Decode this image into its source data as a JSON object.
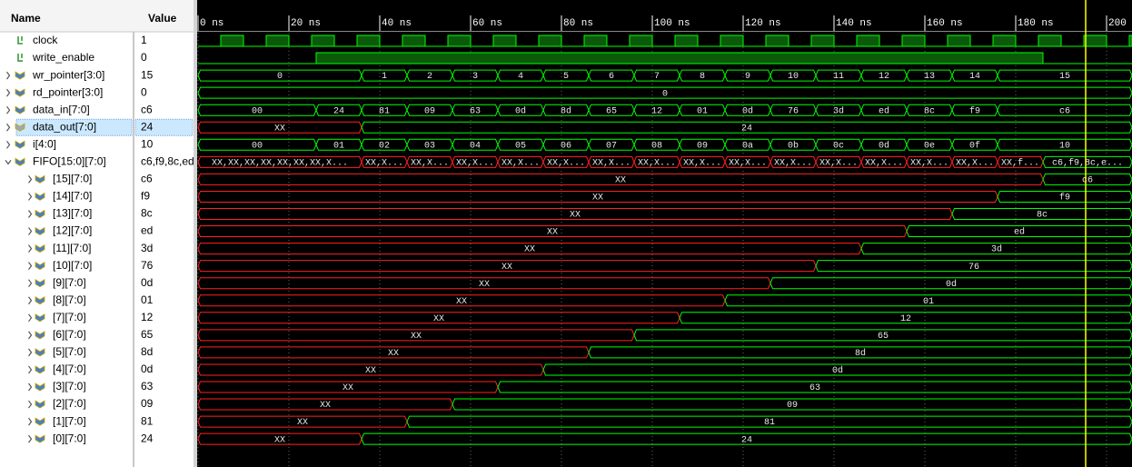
{
  "header": {
    "name": "Name",
    "value": "Value"
  },
  "timeline": {
    "xlim": [
      0,
      205.6
    ],
    "xticks": [
      {
        "value": 0,
        "label": "0 ns"
      },
      {
        "value": 20,
        "label": "20 ns"
      },
      {
        "value": 40,
        "label": "40 ns"
      },
      {
        "value": 60,
        "label": "60 ns"
      },
      {
        "value": 80,
        "label": "80 ns"
      },
      {
        "value": 100,
        "label": "100 ns"
      },
      {
        "value": 120,
        "label": "120 ns"
      },
      {
        "value": 140,
        "label": "140 ns"
      },
      {
        "value": 160,
        "label": "160 ns"
      },
      {
        "value": 180,
        "label": "180 ns"
      },
      {
        "value": 200,
        "label": "200 ns"
      }
    ],
    "cursor": 195.4
  },
  "signals": [
    {
      "name": "clock",
      "value": "1",
      "kind": "bit",
      "level": 0,
      "segments": [
        {
          "t": 0,
          "v": 0
        },
        {
          "t": 5,
          "v": 1
        },
        {
          "t": 10,
          "v": 0
        },
        {
          "t": 15,
          "v": 1
        },
        {
          "t": 20,
          "v": 0
        },
        {
          "t": 25,
          "v": 1
        },
        {
          "t": 30,
          "v": 0
        },
        {
          "t": 35,
          "v": 1
        },
        {
          "t": 40,
          "v": 0
        },
        {
          "t": 45,
          "v": 1
        },
        {
          "t": 50,
          "v": 0
        },
        {
          "t": 55,
          "v": 1
        },
        {
          "t": 60,
          "v": 0
        },
        {
          "t": 65,
          "v": 1
        },
        {
          "t": 70,
          "v": 0
        },
        {
          "t": 75,
          "v": 1
        },
        {
          "t": 80,
          "v": 0
        },
        {
          "t": 85,
          "v": 1
        },
        {
          "t": 90,
          "v": 0
        },
        {
          "t": 95,
          "v": 1
        },
        {
          "t": 100,
          "v": 0
        },
        {
          "t": 105,
          "v": 1
        },
        {
          "t": 110,
          "v": 0
        },
        {
          "t": 115,
          "v": 1
        },
        {
          "t": 120,
          "v": 0
        },
        {
          "t": 125,
          "v": 1
        },
        {
          "t": 130,
          "v": 0
        },
        {
          "t": 135,
          "v": 1
        },
        {
          "t": 140,
          "v": 0
        },
        {
          "t": 145,
          "v": 1
        },
        {
          "t": 150,
          "v": 0
        },
        {
          "t": 155,
          "v": 1
        },
        {
          "t": 160,
          "v": 0
        },
        {
          "t": 165,
          "v": 1
        },
        {
          "t": 170,
          "v": 0
        },
        {
          "t": 175,
          "v": 1
        },
        {
          "t": 180,
          "v": 0
        },
        {
          "t": 185,
          "v": 1
        },
        {
          "t": 190,
          "v": 0
        },
        {
          "t": 195,
          "v": 1
        },
        {
          "t": 200,
          "v": 0
        },
        {
          "t": 205,
          "v": 1
        }
      ]
    },
    {
      "name": "write_enable",
      "value": "0",
      "kind": "bit",
      "level": 0,
      "segments": [
        {
          "t": 0,
          "v": 0
        },
        {
          "t": 26,
          "v": 1
        },
        {
          "t": 186,
          "v": 0
        }
      ]
    },
    {
      "name": "wr_pointer[3:0]",
      "value": "15",
      "kind": "bus",
      "level": 0,
      "segments": [
        {
          "t": 0,
          "label": "0"
        },
        {
          "t": 36,
          "label": "1"
        },
        {
          "t": 46,
          "label": "2"
        },
        {
          "t": 56,
          "label": "3"
        },
        {
          "t": 66,
          "label": "4"
        },
        {
          "t": 76,
          "label": "5"
        },
        {
          "t": 86,
          "label": "6"
        },
        {
          "t": 96,
          "label": "7"
        },
        {
          "t": 106,
          "label": "8"
        },
        {
          "t": 116,
          "label": "9"
        },
        {
          "t": 126,
          "label": "10"
        },
        {
          "t": 136,
          "label": "11"
        },
        {
          "t": 146,
          "label": "12"
        },
        {
          "t": 156,
          "label": "13"
        },
        {
          "t": 166,
          "label": "14"
        },
        {
          "t": 176,
          "label": "15"
        }
      ]
    },
    {
      "name": "rd_pointer[3:0]",
      "value": "0",
      "kind": "bus",
      "level": 0,
      "segments": [
        {
          "t": 0,
          "label": "0"
        }
      ]
    },
    {
      "name": "data_in[7:0]",
      "value": "c6",
      "kind": "bus",
      "level": 0,
      "segments": [
        {
          "t": 0,
          "label": "00"
        },
        {
          "t": 26,
          "label": "24"
        },
        {
          "t": 36,
          "label": "81"
        },
        {
          "t": 46,
          "label": "09"
        },
        {
          "t": 56,
          "label": "63"
        },
        {
          "t": 66,
          "label": "0d"
        },
        {
          "t": 76,
          "label": "8d"
        },
        {
          "t": 86,
          "label": "65"
        },
        {
          "t": 96,
          "label": "12"
        },
        {
          "t": 106,
          "label": "01"
        },
        {
          "t": 116,
          "label": "0d"
        },
        {
          "t": 126,
          "label": "76"
        },
        {
          "t": 136,
          "label": "3d"
        },
        {
          "t": 146,
          "label": "ed"
        },
        {
          "t": 156,
          "label": "8c"
        },
        {
          "t": 166,
          "label": "f9"
        },
        {
          "t": 176,
          "label": "c6"
        }
      ]
    },
    {
      "name": "data_out[7:0]",
      "value": "24",
      "kind": "bus",
      "level": 0,
      "selected": true,
      "segments": [
        {
          "t": 0,
          "label": "XX"
        },
        {
          "t": 36,
          "label": "24"
        }
      ]
    },
    {
      "name": "i[4:0]",
      "value": "10",
      "kind": "bus",
      "level": 0,
      "segments": [
        {
          "t": 0,
          "label": "00"
        },
        {
          "t": 26,
          "label": "01"
        },
        {
          "t": 36,
          "label": "02"
        },
        {
          "t": 46,
          "label": "03"
        },
        {
          "t": 56,
          "label": "04"
        },
        {
          "t": 66,
          "label": "05"
        },
        {
          "t": 76,
          "label": "06"
        },
        {
          "t": 86,
          "label": "07"
        },
        {
          "t": 96,
          "label": "08"
        },
        {
          "t": 106,
          "label": "09"
        },
        {
          "t": 116,
          "label": "0a"
        },
        {
          "t": 126,
          "label": "0b"
        },
        {
          "t": 136,
          "label": "0c"
        },
        {
          "t": 146,
          "label": "0d"
        },
        {
          "t": 156,
          "label": "0e"
        },
        {
          "t": 166,
          "label": "0f"
        },
        {
          "t": 176,
          "label": "10"
        }
      ]
    },
    {
      "name": "FIFO[15:0][7:0]",
      "value": "c6,f9,8c,ed",
      "kind": "bus",
      "level": 0,
      "expanded": true,
      "segments": [
        {
          "t": 0,
          "label": "XX,XX,XX,XX,XX,XX,XX,X..."
        },
        {
          "t": 36,
          "label": "XX,X..."
        },
        {
          "t": 46,
          "label": "XX,X..."
        },
        {
          "t": 56,
          "label": "XX,X..."
        },
        {
          "t": 66,
          "label": "XX,X..."
        },
        {
          "t": 76,
          "label": "XX,X..."
        },
        {
          "t": 86,
          "label": "XX,X..."
        },
        {
          "t": 96,
          "label": "XX,X..."
        },
        {
          "t": 106,
          "label": "XX,X..."
        },
        {
          "t": 116,
          "label": "XX,X..."
        },
        {
          "t": 126,
          "label": "XX,X..."
        },
        {
          "t": 136,
          "label": "XX,X..."
        },
        {
          "t": 146,
          "label": "XX,X..."
        },
        {
          "t": 156,
          "label": "XX,X..."
        },
        {
          "t": 166,
          "label": "XX,X..."
        },
        {
          "t": 176,
          "label": "XX,f..."
        },
        {
          "t": 186,
          "label": "c6,f9,8c,e..."
        }
      ]
    },
    {
      "name": "[15][7:0]",
      "value": "c6",
      "kind": "bus",
      "level": 1,
      "segments": [
        {
          "t": 0,
          "label": "XX"
        },
        {
          "t": 186,
          "label": "c6"
        }
      ]
    },
    {
      "name": "[14][7:0]",
      "value": "f9",
      "kind": "bus",
      "level": 1,
      "segments": [
        {
          "t": 0,
          "label": "XX"
        },
        {
          "t": 176,
          "label": "f9"
        }
      ]
    },
    {
      "name": "[13][7:0]",
      "value": "8c",
      "kind": "bus",
      "level": 1,
      "segments": [
        {
          "t": 0,
          "label": "XX"
        },
        {
          "t": 166,
          "label": "8c"
        }
      ]
    },
    {
      "name": "[12][7:0]",
      "value": "ed",
      "kind": "bus",
      "level": 1,
      "segments": [
        {
          "t": 0,
          "label": "XX"
        },
        {
          "t": 156,
          "label": "ed"
        }
      ]
    },
    {
      "name": "[11][7:0]",
      "value": "3d",
      "kind": "bus",
      "level": 1,
      "segments": [
        {
          "t": 0,
          "label": "XX"
        },
        {
          "t": 146,
          "label": "3d"
        }
      ]
    },
    {
      "name": "[10][7:0]",
      "value": "76",
      "kind": "bus",
      "level": 1,
      "segments": [
        {
          "t": 0,
          "label": "XX"
        },
        {
          "t": 136,
          "label": "76"
        }
      ]
    },
    {
      "name": "[9][7:0]",
      "value": "0d",
      "kind": "bus",
      "level": 1,
      "segments": [
        {
          "t": 0,
          "label": "XX"
        },
        {
          "t": 126,
          "label": "0d"
        }
      ]
    },
    {
      "name": "[8][7:0]",
      "value": "01",
      "kind": "bus",
      "level": 1,
      "segments": [
        {
          "t": 0,
          "label": "XX"
        },
        {
          "t": 116,
          "label": "01"
        }
      ]
    },
    {
      "name": "[7][7:0]",
      "value": "12",
      "kind": "bus",
      "level": 1,
      "segments": [
        {
          "t": 0,
          "label": "XX"
        },
        {
          "t": 106,
          "label": "12"
        }
      ]
    },
    {
      "name": "[6][7:0]",
      "value": "65",
      "kind": "bus",
      "level": 1,
      "segments": [
        {
          "t": 0,
          "label": "XX"
        },
        {
          "t": 96,
          "label": "65"
        }
      ]
    },
    {
      "name": "[5][7:0]",
      "value": "8d",
      "kind": "bus",
      "level": 1,
      "segments": [
        {
          "t": 0,
          "label": "XX"
        },
        {
          "t": 86,
          "label": "8d"
        }
      ]
    },
    {
      "name": "[4][7:0]",
      "value": "0d",
      "kind": "bus",
      "level": 1,
      "segments": [
        {
          "t": 0,
          "label": "XX"
        },
        {
          "t": 76,
          "label": "0d"
        }
      ]
    },
    {
      "name": "[3][7:0]",
      "value": "63",
      "kind": "bus",
      "level": 1,
      "segments": [
        {
          "t": 0,
          "label": "XX"
        },
        {
          "t": 66,
          "label": "63"
        }
      ]
    },
    {
      "name": "[2][7:0]",
      "value": "09",
      "kind": "bus",
      "level": 1,
      "segments": [
        {
          "t": 0,
          "label": "XX"
        },
        {
          "t": 56,
          "label": "09"
        }
      ]
    },
    {
      "name": "[1][7:0]",
      "value": "81",
      "kind": "bus",
      "level": 1,
      "segments": [
        {
          "t": 0,
          "label": "XX"
        },
        {
          "t": 46,
          "label": "81"
        }
      ]
    },
    {
      "name": "[0][7:0]",
      "value": "24",
      "kind": "bus",
      "level": 1,
      "segments": [
        {
          "t": 0,
          "label": "XX"
        },
        {
          "t": 36,
          "label": "24"
        }
      ]
    }
  ]
}
